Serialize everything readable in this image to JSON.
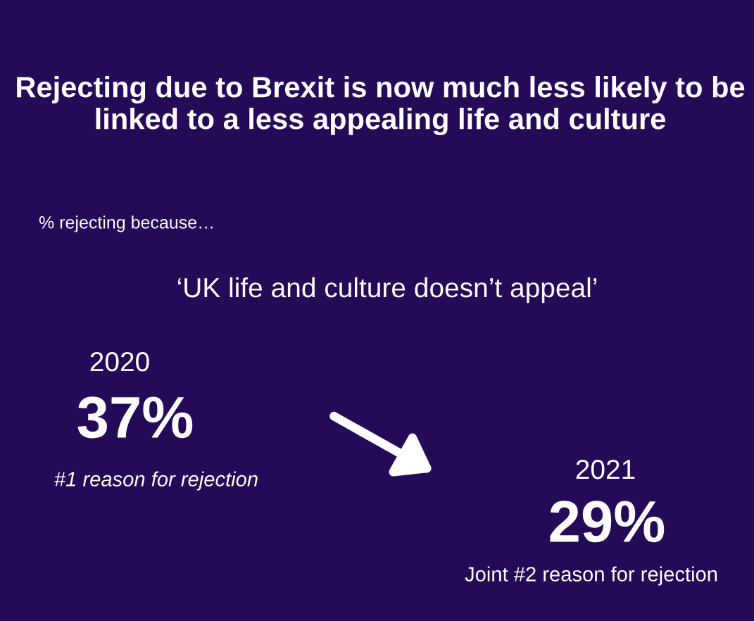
{
  "chart_data": {
    "type": "other",
    "title": "Rejecting due to Brexit is now much less likely to be linked to a less appealing life and culture",
    "subtitle": "% rejecting because…",
    "categories": [
      "2020",
      "2021"
    ],
    "values": [
      37,
      29
    ],
    "value_labels": [
      "37%",
      "29%"
    ],
    "color": "#ffffff",
    "annotations": [
      "‘UK life and culture doesn’t appeal’",
      "#1 reason for rejection",
      "Joint #2 reason for rejection"
    ]
  }
}
